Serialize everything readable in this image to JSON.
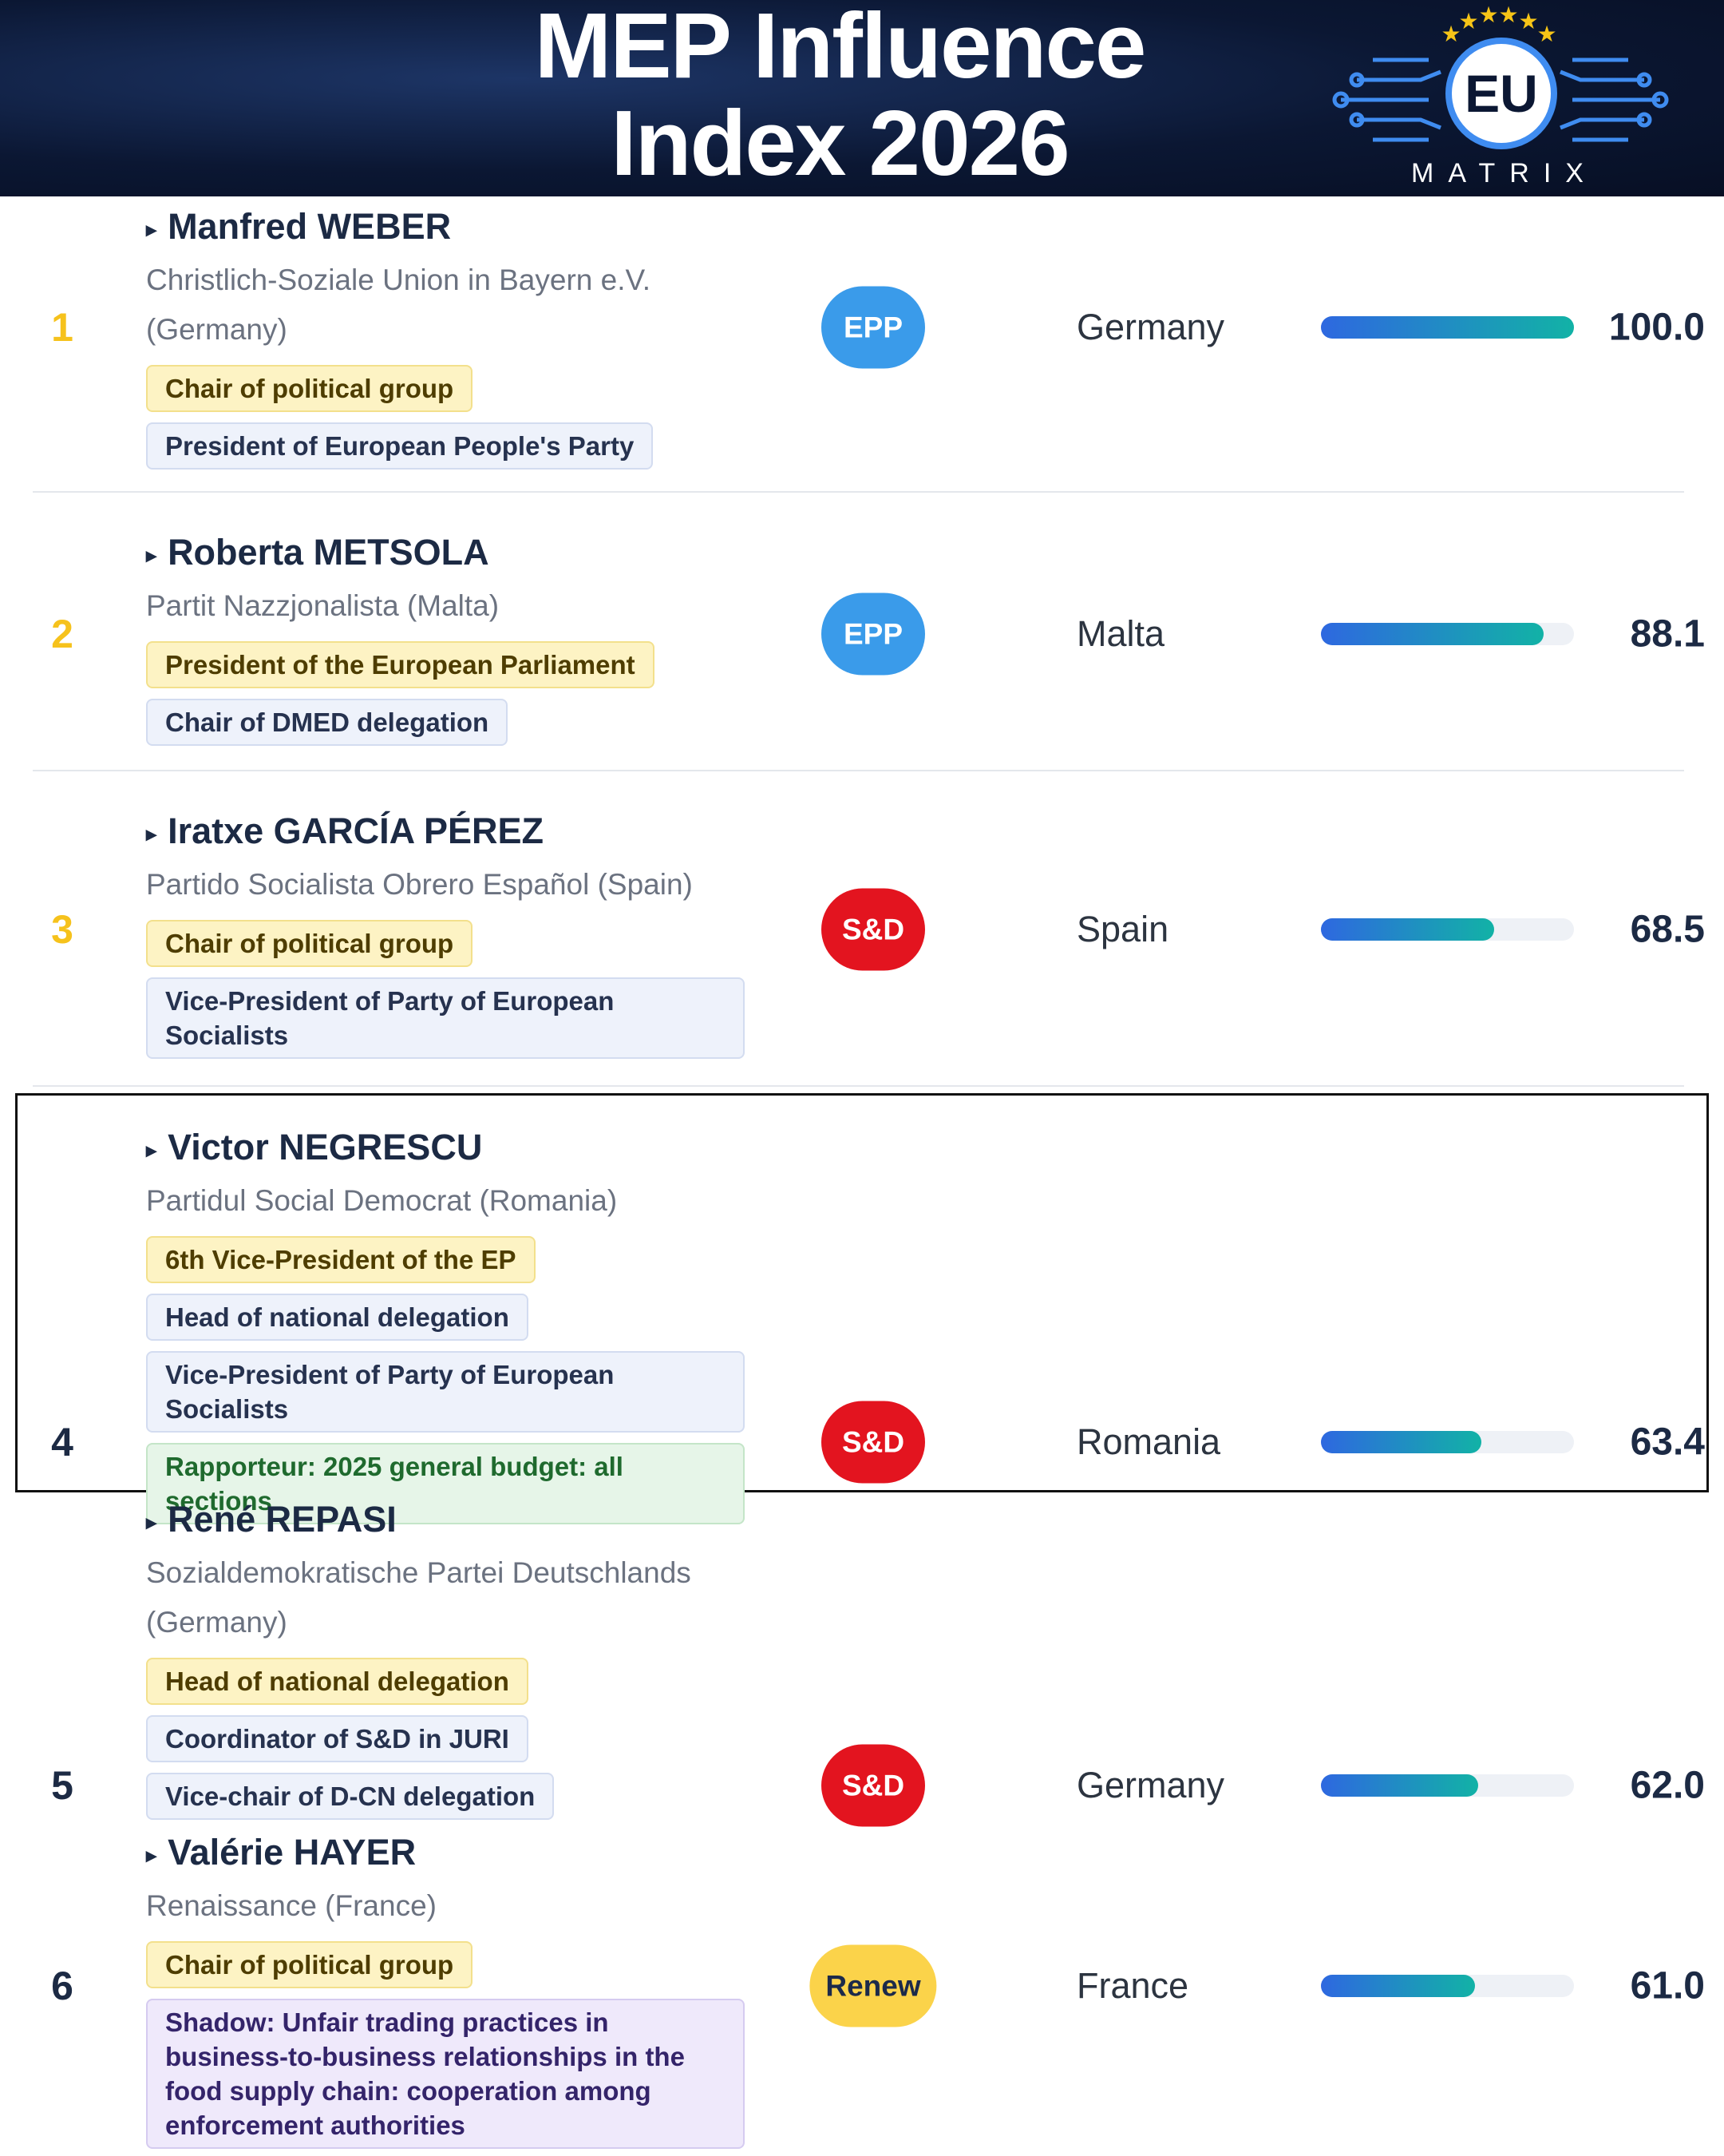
{
  "header": {
    "title": "MEP Influence Index 2026",
    "logo": {
      "text": "EU",
      "subtext": "MATRIX"
    }
  },
  "rows": [
    {
      "rank": 1,
      "name": "Manfred WEBER",
      "party": "Christlich-Soziale Union in Bayern e.V. (Germany)",
      "group": {
        "text": "EPP",
        "color": "#3a9bea",
        "text_color": "#ffffff"
      },
      "country": "Germany",
      "score": {
        "value": 100,
        "label": "100.0"
      },
      "tags": [
        {
          "text": "Chair of political group",
          "kind": "yellow"
        },
        {
          "text": "President of European People's Party",
          "kind": "blue"
        }
      ]
    },
    {
      "rank": 2,
      "name": "Roberta METSOLA",
      "party": "Partit Nazzjonalista (Malta)",
      "group": {
        "text": "EPP",
        "color": "#3a9bea",
        "text_color": "#ffffff"
      },
      "country": "Malta",
      "score": {
        "value": 88.1,
        "label": "88.1"
      },
      "tags": [
        {
          "text": "President of the European Parliament",
          "kind": "yellow"
        },
        {
          "text": "Chair of DMED delegation",
          "kind": "blue"
        }
      ]
    },
    {
      "rank": 3,
      "name": "Iratxe GARCÍA PÉREZ",
      "party": "Partido Socialista Obrero Español (Spain)",
      "group": {
        "text": "S&D",
        "color": "#e3141f",
        "text_color": "#ffffff"
      },
      "country": "Spain",
      "score": {
        "value": 68.5,
        "label": "68.5"
      },
      "tags": [
        {
          "text": "Chair of political group",
          "kind": "yellow"
        },
        {
          "text": "Vice-President of Party of European Socialists",
          "kind": "blue"
        }
      ]
    },
    {
      "rank": 4,
      "name": "Victor NEGRESCU",
      "party": "Partidul Social Democrat (Romania)",
      "group": {
        "text": "S&D",
        "color": "#e3141f",
        "text_color": "#ffffff"
      },
      "country": "Romania",
      "score": {
        "value": 63.4,
        "label": "63.4"
      },
      "tags": [
        {
          "text": "6th Vice-President of the EP",
          "kind": "yellow"
        },
        {
          "text": "Head of national delegation",
          "kind": "blue"
        },
        {
          "text": "Vice-President of Party of European Socialists",
          "kind": "blue"
        },
        {
          "text": "Rapporteur: 2025 general budget: all sections",
          "kind": "green"
        }
      ]
    },
    {
      "rank": 5,
      "name": "René REPASI",
      "party": "Sozialdemokratische Partei Deutschlands (Germany)",
      "group": {
        "text": "S&D",
        "color": "#e3141f",
        "text_color": "#ffffff"
      },
      "country": "Germany",
      "score": {
        "value": 62,
        "label": "62.0"
      },
      "tags": [
        {
          "text": "Head of national delegation",
          "kind": "yellow"
        },
        {
          "text": "Coordinator of S&D in JURI",
          "kind": "blue"
        },
        {
          "text": "Vice-chair of D-CN delegation",
          "kind": "blue"
        }
      ]
    },
    {
      "rank": 6,
      "name": "Valérie HAYER",
      "party": "Renaissance (France)",
      "group": {
        "text": "Renew",
        "color": "#fbd34a",
        "text_color": "#1c2a4a"
      },
      "country": "France",
      "score": {
        "value": 61,
        "label": "61.0"
      },
      "tags": [
        {
          "text": "Chair of political group",
          "kind": "yellow"
        },
        {
          "text": "Shadow: Unfair trading practices in business-to-business relationships in the food supply chain: cooperation among enforcement authorities",
          "kind": "purple"
        }
      ]
    }
  ]
}
